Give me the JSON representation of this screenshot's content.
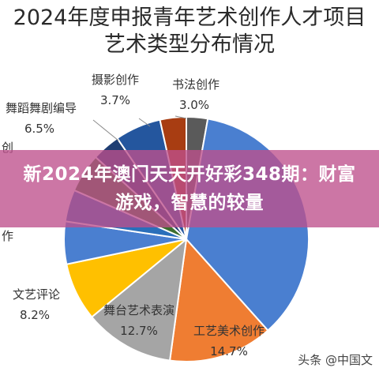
{
  "chart_data": {
    "type": "pie",
    "title_lines": [
      "2024年度申报青年艺术创作人才项目",
      "艺术类型分布情况"
    ],
    "slices": [
      {
        "label": "书法创作",
        "value": 3.0,
        "value_label": "3.0%",
        "color": "#5a5a5a"
      },
      {
        "label": "",
        "value": 38.0,
        "value_label": "",
        "color": "#4a7fd0"
      },
      {
        "label": "工艺美术创作",
        "value": 14.7,
        "value_label": "14.7%",
        "color": "#ef7d32"
      },
      {
        "label": "舞台艺术表演",
        "value": 12.7,
        "value_label": "12.7%",
        "color": "#a5a5a5"
      },
      {
        "label": "文艺评论",
        "value": 8.2,
        "value_label": "8.2%",
        "color": "#ffc000"
      },
      {
        "label": "",
        "value": 6.0,
        "value_label": "",
        "color": "#4a7fd0"
      },
      {
        "label": "",
        "value": 4.5,
        "value_label": "",
        "color": "#2a6fba"
      },
      {
        "label": "",
        "value": 5.5,
        "value_label": "",
        "color": "#3c6e2f"
      },
      {
        "label": "",
        "value": 4.0,
        "value_label": "",
        "color": "#1f3e73"
      },
      {
        "label": "舞蹈舞剧编导",
        "value": 6.5,
        "value_label": "6.5%",
        "color": "#24569e"
      },
      {
        "label": "摄影创作",
        "value": 3.7,
        "value_label": "3.7%",
        "color": "#a83d12"
      }
    ],
    "partial_labels": [
      "创",
      "作"
    ]
  },
  "overlay": {
    "text": "新2024年澳门天天开好彩348期：财富游戏，智慧的较量"
  },
  "watermark": {
    "text": "头条 @中国文"
  }
}
